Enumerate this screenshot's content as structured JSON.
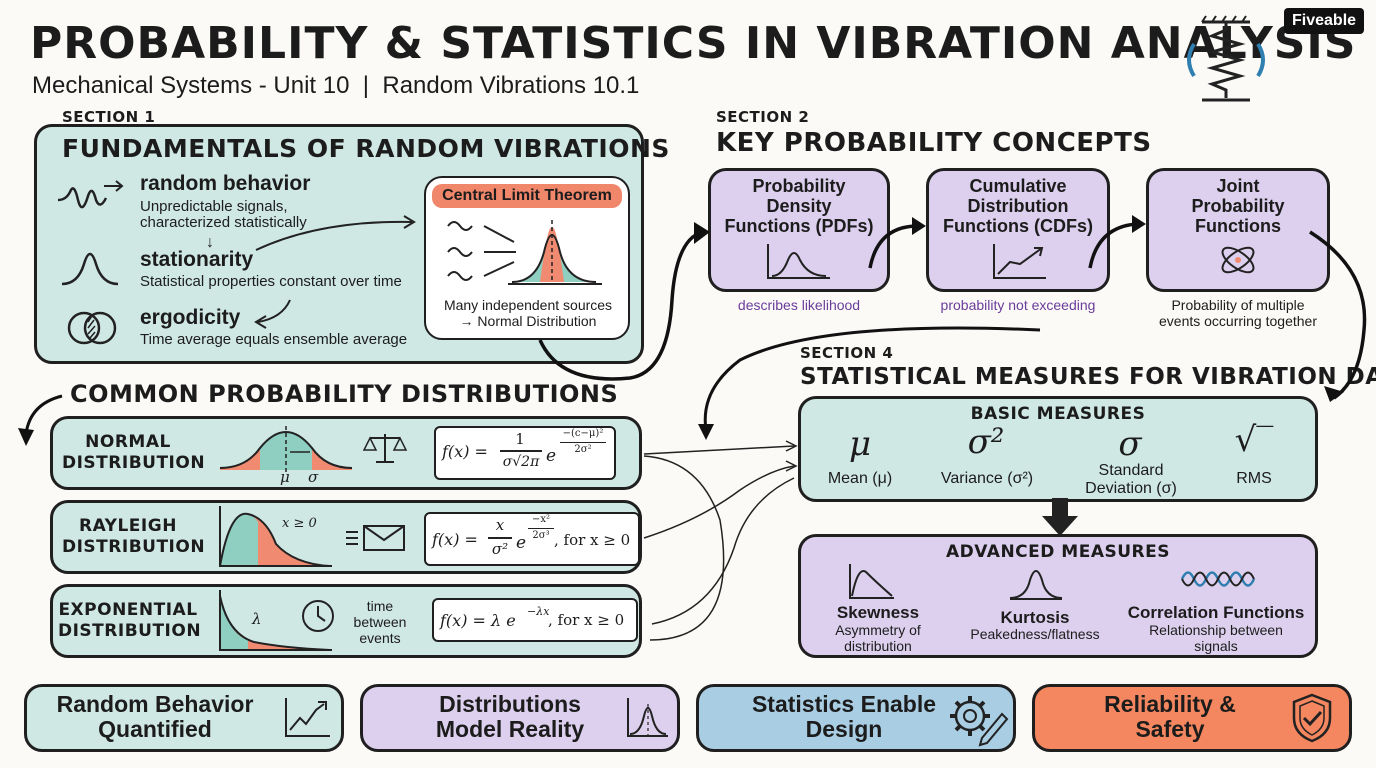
{
  "header": {
    "title": "PROBABILITY & STATISTICS IN VIBRATION ANALYSIS",
    "subtitle": "Mechanical Systems - Unit 10  |  Random Vibrations 10.1",
    "logo": "Fiveable"
  },
  "section1": {
    "tag": "SECTION 1",
    "title": "FUNDAMENTALS OF RANDOM VIBRATIONS",
    "items": [
      {
        "term": "random behavior",
        "desc": "Unpredictable signals,\ncharacterized statistically",
        "icon": "wave-icon"
      },
      {
        "term": "stationarity",
        "desc": "Statistical properties constant over time",
        "icon": "bell-curve-icon"
      },
      {
        "term": "ergodicity",
        "desc": "Time average equals ensemble average",
        "icon": "overlap-circles-icon"
      }
    ],
    "clt": {
      "title": "Central Limit Theorem",
      "caption": "Many independent sources\n→ Normal Distribution"
    }
  },
  "distributions": {
    "title": "COMMON PROBABILITY DISTRIBUTIONS",
    "normal": {
      "name": "NORMAL\nDISTRIBUTION",
      "mu": "μ",
      "sigma": "σ",
      "formula_lhs": "f(x) =",
      "formula_num": "1",
      "formula_den": "σ√2π",
      "formula_exp_num": "−(c−μ)²",
      "formula_exp_den": "2σ²",
      "e": "e"
    },
    "rayleigh": {
      "name": "RAYLEIGH\nDISTRIBUTION",
      "cond": "x ≥ 0",
      "formula_lhs": "f(x) =",
      "formula_num": "x",
      "formula_den": "σ²",
      "formula_exp_num": "−x²",
      "formula_exp_den": "2σ³",
      "formula_tail": ", for x ≥ 0",
      "e": "e"
    },
    "exponential": {
      "name": "EXPONENTIAL\nDISTRIBUTION",
      "lambda": "λ",
      "note": "time\nbetween\nevents",
      "formula": "f(x) = λ e",
      "formula_exp": "−λx",
      "formula_tail": ", for x ≥ 0"
    }
  },
  "section2": {
    "tag": "SECTION 2",
    "title": "KEY PROBABILITY CONCEPTS",
    "cards": [
      {
        "title": "Probability\nDensity\nFunctions (PDFs)",
        "caption": "describes likelihood"
      },
      {
        "title": "Cumulative\nDistribution\nFunctions (CDFs)",
        "caption": "probability not exceeding"
      },
      {
        "title": "Joint\nProbability\nFunctions",
        "caption": "Probability of multiple\nevents occurring together"
      }
    ]
  },
  "section4": {
    "tag": "SECTION 4",
    "title": "STATISTICAL MEASURES FOR VIBRATION DATA",
    "basic": {
      "title": "BASIC MEASURES",
      "items": [
        {
          "symbol": "μ",
          "label": "Mean (μ)"
        },
        {
          "symbol": "σ²",
          "label": "Variance (σ²)"
        },
        {
          "symbol": "σ",
          "label": "Standard\nDeviation (σ)"
        },
        {
          "symbol": "√‾",
          "label": "RMS"
        }
      ]
    },
    "advanced": {
      "title": "ADVANCED MEASURES",
      "items": [
        {
          "term": "Skewness",
          "desc": "Asymmetry of\ndistribution"
        },
        {
          "term": "Kurtosis",
          "desc": "Peakedness/flatness"
        },
        {
          "term": "Correlation Functions",
          "desc": "Relationship between\nsignals"
        }
      ]
    }
  },
  "footer": [
    {
      "label": "Random Behavior\nQuantified",
      "icon": "trend-chart-icon",
      "color": "#cfe8e4"
    },
    {
      "label": "Distributions\nModel Reality",
      "icon": "bell-chart-icon",
      "color": "#ddd0ee"
    },
    {
      "label": "Statistics Enable\nDesign",
      "icon": "gear-pencil-icon",
      "color": "#a9cde3"
    },
    {
      "label": "Reliability &\nSafety",
      "icon": "shield-check-icon",
      "color": "#f4875f"
    }
  ],
  "colors": {
    "teal": "#cfe8e4",
    "lavender": "#ddd0ee",
    "blue": "#a9cde3",
    "orange": "#f4875f",
    "salmon": "#f08a70",
    "purple_text": "#6a3d9a"
  }
}
